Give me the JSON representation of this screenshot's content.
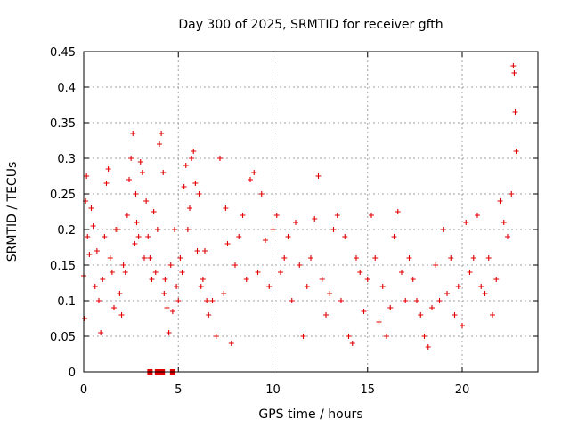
{
  "chart_data": {
    "type": "scatter",
    "title": "Day 300 of 2025, SRMTID for receiver gfth",
    "xlabel": "GPS time / hours",
    "ylabel": "SRMTID / TECUs",
    "xlim": [
      0,
      24
    ],
    "ylim": [
      0,
      0.45
    ],
    "xticks": [
      0,
      5,
      10,
      15,
      20
    ],
    "yticks": [
      0,
      0.05,
      0.1,
      0.15,
      0.2,
      0.25,
      0.3,
      0.35,
      0.4,
      0.45
    ],
    "xtick_labels": [
      "0",
      "5",
      "10",
      "15",
      "20"
    ],
    "ytick_labels": [
      "0",
      "0.05",
      "0.1",
      "0.15",
      "0.2",
      "0.25",
      "0.3",
      "0.35",
      "0.4",
      "0.45"
    ],
    "grid": true,
    "legend": "none",
    "marker": "plus",
    "series": [
      {
        "color": "#e00000",
        "x": [
          0.0,
          0.05,
          0.1,
          0.15,
          0.2,
          0.3,
          0.4,
          0.5,
          0.6,
          0.7,
          0.8,
          0.9,
          1.0,
          1.1,
          1.2,
          1.3,
          1.4,
          1.5,
          1.6,
          1.7,
          1.8,
          1.9,
          2.0,
          2.1,
          2.2,
          2.3,
          2.4,
          2.5,
          2.6,
          2.7,
          2.75,
          2.8,
          2.9,
          3.0,
          3.1,
          3.2,
          3.3,
          3.4,
          3.5,
          3.6,
          3.7,
          3.8,
          3.9,
          4.0,
          4.1,
          4.2,
          4.25,
          4.3,
          4.4,
          4.5,
          4.6,
          4.7,
          4.8,
          4.9,
          5.0,
          5.1,
          5.2,
          5.3,
          5.4,
          5.5,
          5.6,
          5.7,
          5.8,
          5.9,
          6.0,
          6.1,
          6.2,
          6.3,
          6.4,
          6.5,
          6.6,
          6.8,
          7.0,
          7.2,
          7.4,
          7.5,
          7.6,
          7.8,
          8.0,
          8.2,
          8.4,
          8.6,
          8.8,
          9.0,
          9.2,
          9.4,
          9.6,
          9.8,
          10.0,
          10.2,
          10.4,
          10.6,
          10.8,
          11.0,
          11.2,
          11.4,
          11.6,
          11.8,
          12.0,
          12.2,
          12.4,
          12.6,
          12.8,
          13.0,
          13.2,
          13.4,
          13.6,
          13.8,
          14.0,
          14.2,
          14.4,
          14.6,
          14.8,
          15.0,
          15.2,
          15.4,
          15.6,
          15.8,
          16.0,
          16.2,
          16.4,
          16.6,
          16.8,
          17.0,
          17.2,
          17.4,
          17.6,
          17.8,
          18.0,
          18.2,
          18.4,
          18.6,
          18.8,
          19.0,
          19.2,
          19.4,
          19.6,
          19.8,
          20.0,
          20.2,
          20.4,
          20.6,
          20.8,
          21.0,
          21.2,
          21.4,
          21.6,
          21.8,
          22.0,
          22.2,
          22.4,
          22.6,
          22.7,
          22.75,
          22.8,
          22.85
        ],
        "y": [
          0.135,
          0.075,
          0.24,
          0.275,
          0.19,
          0.165,
          0.23,
          0.205,
          0.12,
          0.17,
          0.1,
          0.055,
          0.13,
          0.19,
          0.265,
          0.285,
          0.16,
          0.14,
          0.09,
          0.2,
          0.2,
          0.11,
          0.08,
          0.15,
          0.14,
          0.22,
          0.27,
          0.3,
          0.335,
          0.18,
          0.25,
          0.21,
          0.19,
          0.295,
          0.28,
          0.16,
          0.24,
          0.19,
          0.16,
          0.13,
          0.225,
          0.14,
          0.2,
          0.32,
          0.335,
          0.28,
          0.11,
          0.13,
          0.09,
          0.055,
          0.15,
          0.085,
          0.2,
          0.12,
          0.1,
          0.16,
          0.14,
          0.26,
          0.29,
          0.2,
          0.23,
          0.3,
          0.31,
          0.265,
          0.17,
          0.25,
          0.12,
          0.13,
          0.17,
          0.1,
          0.08,
          0.1,
          0.05,
          0.3,
          0.11,
          0.23,
          0.18,
          0.04,
          0.15,
          0.19,
          0.22,
          0.13,
          0.27,
          0.28,
          0.14,
          0.25,
          0.185,
          0.12,
          0.2,
          0.22,
          0.14,
          0.16,
          0.19,
          0.1,
          0.21,
          0.15,
          0.05,
          0.12,
          0.16,
          0.215,
          0.275,
          0.13,
          0.08,
          0.11,
          0.2,
          0.22,
          0.1,
          0.19,
          0.05,
          0.04,
          0.16,
          0.14,
          0.085,
          0.13,
          0.22,
          0.16,
          0.07,
          0.12,
          0.05,
          0.09,
          0.19,
          0.225,
          0.14,
          0.1,
          0.16,
          0.13,
          0.1,
          0.08,
          0.05,
          0.035,
          0.09,
          0.15,
          0.1,
          0.2,
          0.11,
          0.16,
          0.08,
          0.12,
          0.065,
          0.21,
          0.14,
          0.16,
          0.22,
          0.12,
          0.11,
          0.16,
          0.08,
          0.13,
          0.24,
          0.21,
          0.19,
          0.25,
          0.43,
          0.42,
          0.365,
          0.31
        ]
      }
    ],
    "zero_markers_x": [
      3.5,
      3.9,
      4.15,
      4.7
    ]
  }
}
